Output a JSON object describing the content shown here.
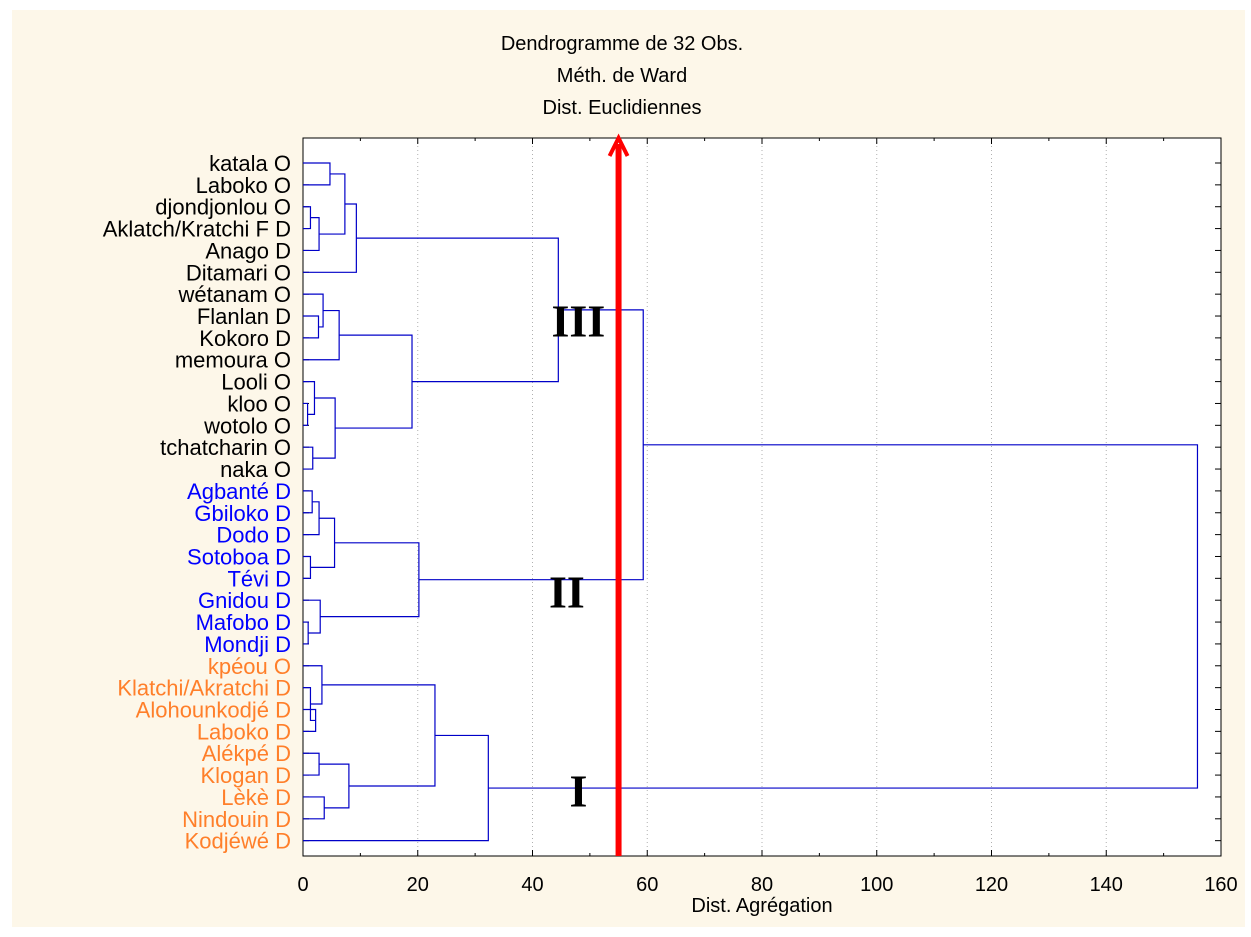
{
  "chart_data": {
    "type": "dendrogram",
    "title": "Dendrogramme de 32 Obs.",
    "subtitle_lines": [
      "Méth. de Ward",
      "Dist. Euclidiennes"
    ],
    "xlabel": "Dist. Agrégation",
    "xlim": [
      0,
      160
    ],
    "x_ticks": [
      "0",
      "20",
      "40",
      "60",
      "80",
      "100",
      "120",
      "140",
      "160"
    ],
    "grid": "vertical dotted",
    "cut_line": {
      "x": 55,
      "color": "#ff0000"
    },
    "leaves": [
      {
        "label": "katala O",
        "group": "O"
      },
      {
        "label": "Laboko O",
        "group": "O"
      },
      {
        "label": "djondjonlou O",
        "group": "O"
      },
      {
        "label": "Aklatch/Kratchi F D",
        "group": "O"
      },
      {
        "label": "Anago D",
        "group": "O"
      },
      {
        "label": "Ditamari O",
        "group": "O"
      },
      {
        "label": "wétanam O",
        "group": "O"
      },
      {
        "label": "Flanlan D",
        "group": "O"
      },
      {
        "label": "Kokoro D",
        "group": "O"
      },
      {
        "label": "memoura O",
        "group": "O"
      },
      {
        "label": "Looli O",
        "group": "O"
      },
      {
        "label": "kloo O",
        "group": "O"
      },
      {
        "label": "wotolo O",
        "group": "O"
      },
      {
        "label": "tchatcharin O",
        "group": "O"
      },
      {
        "label": "naka O",
        "group": "O"
      },
      {
        "label": "Agbanté D",
        "group": "B"
      },
      {
        "label": "Gbiloko D",
        "group": "B"
      },
      {
        "label": "Dodo D",
        "group": "B"
      },
      {
        "label": "Sotoboa D",
        "group": "B"
      },
      {
        "label": "Tévi D",
        "group": "B"
      },
      {
        "label": "Gnidou D",
        "group": "B"
      },
      {
        "label": "Mafobo D",
        "group": "B"
      },
      {
        "label": "Mondji D",
        "group": "B"
      },
      {
        "label": "kpéou O",
        "group": "R"
      },
      {
        "label": "Klatchi/Akratchi D",
        "group": "R"
      },
      {
        "label": "Alohounkodjé D",
        "group": "R"
      },
      {
        "label": "Laboko D",
        "group": "R"
      },
      {
        "label": "Alékpé D",
        "group": "R"
      },
      {
        "label": "Klogan D",
        "group": "R"
      },
      {
        "label": "Lèkè D",
        "group": "R"
      },
      {
        "label": "Nindouin D",
        "group": "R"
      },
      {
        "label": "Kodjéwé D",
        "group": "R"
      }
    ],
    "merges": [
      {
        "a": 0,
        "b": 1,
        "h": 4.7
      },
      {
        "a": 2,
        "b": 3,
        "h": 1.3
      },
      {
        "a": "m1",
        "b": 4,
        "h": 2.8
      },
      {
        "a": "m0",
        "b": "m2",
        "h": 7.3
      },
      {
        "a": "m3",
        "b": 5,
        "h": 9.3
      },
      {
        "a": 7,
        "b": 8,
        "h": 2.7
      },
      {
        "a": 6,
        "b": "m5",
        "h": 3.5
      },
      {
        "a": "m6",
        "b": 9,
        "h": 6.3
      },
      {
        "a": 11,
        "b": 12,
        "h": 0.8
      },
      {
        "a": 10,
        "b": "m8",
        "h": 2.0
      },
      {
        "a": 13,
        "b": 14,
        "h": 1.7
      },
      {
        "a": "m9",
        "b": "m10",
        "h": 5.6
      },
      {
        "a": "m7",
        "b": "m11",
        "h": 19.0
      },
      {
        "a": "m4",
        "b": "m12",
        "h": 44.5
      },
      {
        "a": 15,
        "b": 16,
        "h": 1.6
      },
      {
        "a": "m14",
        "b": 17,
        "h": 2.8
      },
      {
        "a": 18,
        "b": 19,
        "h": 1.3
      },
      {
        "a": "m15",
        "b": "m16",
        "h": 5.5
      },
      {
        "a": 21,
        "b": 22,
        "h": 0.9
      },
      {
        "a": 20,
        "b": "m18",
        "h": 3.0
      },
      {
        "a": "m17",
        "b": "m19",
        "h": 20.2
      },
      {
        "a": 25,
        "b": 26,
        "h": 2.2
      },
      {
        "a": 24,
        "b": "m21",
        "h": 1.3
      },
      {
        "a": 23,
        "b": "m22",
        "h": 3.3
      },
      {
        "a": 27,
        "b": 28,
        "h": 2.8
      },
      {
        "a": 29,
        "b": 30,
        "h": 3.7
      },
      {
        "a": "m24",
        "b": "m25",
        "h": 8.0
      },
      {
        "a": "m23",
        "b": "m26",
        "h": 23.0
      },
      {
        "a": "m27",
        "b": 31,
        "h": 32.3
      },
      {
        "a": "m13",
        "b": "m20",
        "h": 59.3
      },
      {
        "a": "m29",
        "b": "m28",
        "h": 155.9
      }
    ],
    "cluster_labels": [
      {
        "text": "III",
        "x": 48,
        "leaf_pos": 7.2
      },
      {
        "text": "II",
        "x": 46,
        "leaf_pos": 19.6
      },
      {
        "text": "I",
        "x": 48,
        "leaf_pos": 28.7
      }
    ],
    "colors": {
      "background": "#fdf7e9",
      "dendrogram": "#0000c8",
      "cut_line": "#ff0000",
      "leaf_O": "#000000",
      "leaf_B": "#0000ff",
      "leaf_R": "#ff7f2a"
    }
  }
}
